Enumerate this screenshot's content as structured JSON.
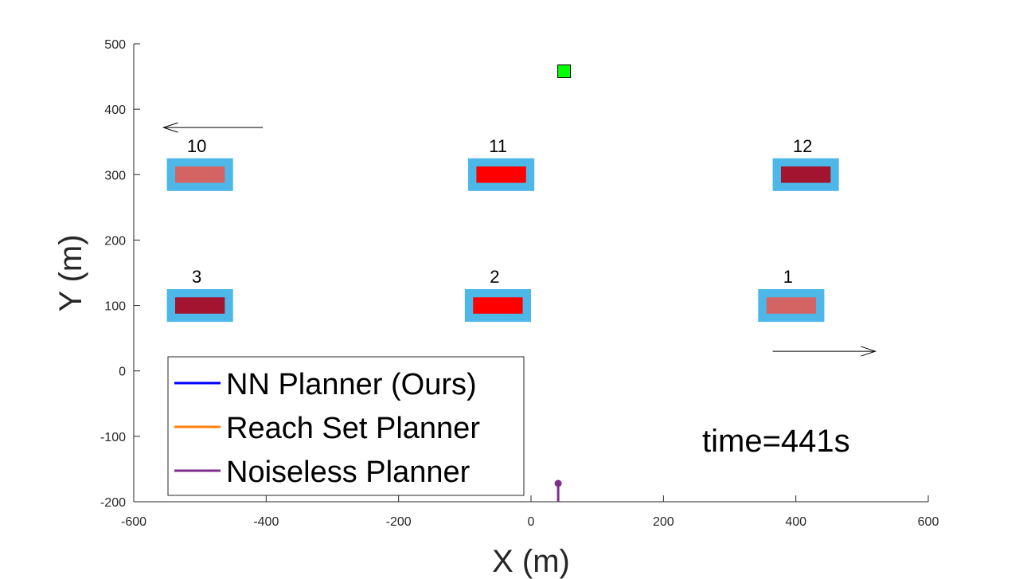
{
  "chart_data": {
    "type": "scatter",
    "title": "",
    "xlabel": "X (m)",
    "ylabel": "Y (m)",
    "xlim": [
      -600,
      600
    ],
    "ylim": [
      -200,
      500
    ],
    "xticks": [
      -600,
      -400,
      -200,
      0,
      200,
      400,
      600
    ],
    "yticks": [
      -200,
      -100,
      0,
      100,
      200,
      300,
      400,
      500
    ],
    "grid": false,
    "legend_position": "bottom-left",
    "legend": [
      {
        "name": "NN Planner (Ours)",
        "color": "#0000ff"
      },
      {
        "name": "Reach Set Planner",
        "color": "#ff7f0e"
      },
      {
        "name": "Noiseless Planner",
        "color": "#7e2f8e"
      }
    ],
    "annotation_time": "time=441s",
    "vehicles": [
      {
        "label": "10",
        "x": -500,
        "y": 300,
        "color": "#d46464",
        "bound_width": 100,
        "bound_height": 50,
        "body_width": 75,
        "body_height": 25
      },
      {
        "label": "11",
        "x": -45,
        "y": 300,
        "color": "#ff0000",
        "bound_width": 100,
        "bound_height": 50,
        "body_width": 75,
        "body_height": 25
      },
      {
        "label": "12",
        "x": 415,
        "y": 300,
        "color": "#a2142f",
        "bound_width": 100,
        "bound_height": 50,
        "body_width": 75,
        "body_height": 25
      },
      {
        "label": "3",
        "x": -500,
        "y": 100,
        "color": "#a2142f",
        "bound_width": 100,
        "bound_height": 50,
        "body_width": 75,
        "body_height": 25
      },
      {
        "label": "2",
        "x": -50,
        "y": 100,
        "color": "#ff0000",
        "bound_width": 100,
        "bound_height": 50,
        "body_width": 75,
        "body_height": 25
      },
      {
        "label": "1",
        "x": 393,
        "y": 100,
        "color": "#d46464",
        "bound_width": 100,
        "bound_height": 50,
        "body_width": 75,
        "body_height": 25
      }
    ],
    "vehicle_bound_color": "#4db8e8",
    "direction_arrows": [
      {
        "x_start": -405,
        "y": 372,
        "x_end": -555,
        "length_note": "top row moving left"
      },
      {
        "x_start": 365,
        "y": 30,
        "x_end": 520,
        "length_note": "bottom row moving right"
      }
    ],
    "goal": {
      "x": 50,
      "y": 458,
      "color": "#00ff00",
      "size": 20
    },
    "agent_trajectory": {
      "color": "#7e2f8e",
      "x": [
        41,
        41
      ],
      "y": [
        -200,
        -172
      ]
    }
  }
}
